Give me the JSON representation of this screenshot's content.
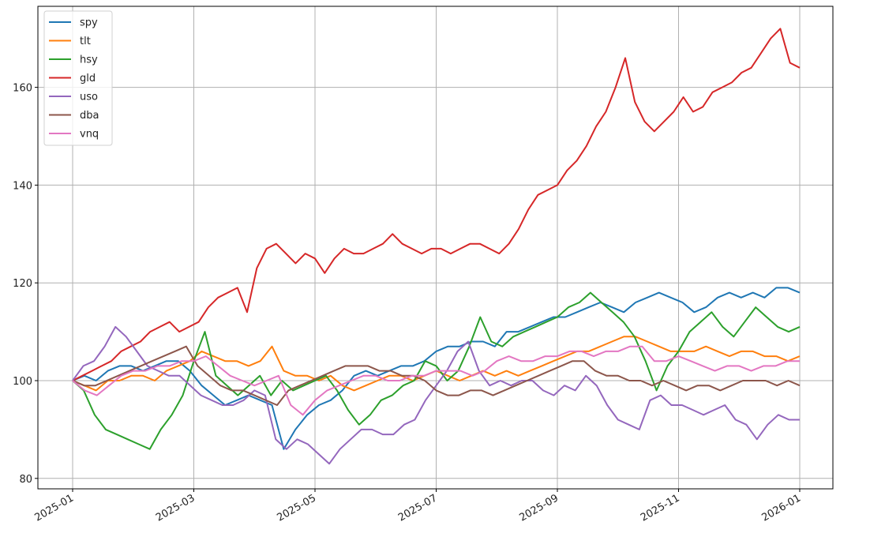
{
  "chart_data": {
    "type": "line",
    "title": "",
    "xlabel": "",
    "ylabel": "",
    "ylim": [
      78,
      176
    ],
    "xlim": [
      "2024-12-16",
      "2026-01-15"
    ],
    "grid": true,
    "legend_position": "upper left",
    "x_ticks": [
      "2025-01",
      "2025-03",
      "2025-05",
      "2025-07",
      "2025-09",
      "2025-11",
      "2026-01"
    ],
    "y_ticks": [
      80,
      100,
      120,
      140,
      160
    ],
    "x_step_days": 7,
    "x_start": "2025-01-01",
    "series": [
      {
        "name": "spy",
        "color": "#1f77b4",
        "values": [
          100,
          101,
          100,
          102,
          103,
          103,
          102,
          103,
          104,
          104,
          102,
          99,
          97,
          95,
          96,
          97,
          96,
          95,
          86,
          90,
          93,
          95,
          96,
          98,
          101,
          102,
          101,
          102,
          103,
          103,
          104,
          106,
          107,
          107,
          108,
          108,
          107,
          110,
          110,
          111,
          112,
          113,
          113,
          114,
          115,
          116,
          115,
          114,
          116,
          117,
          118,
          117,
          116,
          114,
          115,
          117,
          118,
          117,
          118,
          117,
          119,
          119,
          118
        ]
      },
      {
        "name": "tlt",
        "color": "#ff7f0e",
        "values": [
          100,
          99,
          98,
          100,
          100,
          101,
          101,
          100,
          102,
          103,
          104,
          106,
          105,
          104,
          104,
          103,
          104,
          107,
          102,
          101,
          101,
          100,
          101,
          99,
          98,
          99,
          100,
          101,
          101,
          100,
          101,
          102,
          101,
          100,
          101,
          102,
          101,
          102,
          101,
          102,
          103,
          104,
          105,
          106,
          106,
          107,
          108,
          109,
          109,
          108,
          107,
          106,
          106,
          106,
          107,
          106,
          105,
          106,
          106,
          105,
          105,
          104,
          105
        ]
      },
      {
        "name": "hsy",
        "color": "#2ca02c",
        "values": [
          100,
          98,
          93,
          90,
          89,
          88,
          87,
          86,
          90,
          93,
          97,
          104,
          110,
          101,
          99,
          97,
          99,
          101,
          97,
          100,
          98,
          99,
          100,
          101,
          98,
          94,
          91,
          93,
          96,
          97,
          99,
          100,
          104,
          103,
          100,
          102,
          107,
          113,
          108,
          107,
          109,
          110,
          111,
          112,
          113,
          115,
          116,
          118,
          116,
          114,
          112,
          109,
          104,
          98,
          103,
          106,
          110,
          112,
          114,
          111,
          109,
          112,
          115,
          113,
          111,
          110,
          111
        ]
      },
      {
        "name": "gld",
        "color": "#d62728",
        "values": [
          100,
          101,
          102,
          103,
          104,
          106,
          107,
          108,
          110,
          111,
          112,
          110,
          111,
          112,
          115,
          117,
          118,
          119,
          114,
          123,
          127,
          128,
          126,
          124,
          126,
          125,
          122,
          125,
          127,
          126,
          126,
          127,
          128,
          130,
          128,
          127,
          126,
          127,
          127,
          126,
          127,
          128,
          128,
          127,
          126,
          128,
          131,
          135,
          138,
          139,
          140,
          143,
          145,
          148,
          152,
          155,
          160,
          166,
          157,
          153,
          151,
          153,
          155,
          158,
          155,
          156,
          159,
          160,
          161,
          163,
          164,
          167,
          170,
          172,
          165,
          164
        ]
      },
      {
        "name": "uso",
        "color": "#9467bd",
        "values": [
          100,
          103,
          104,
          107,
          111,
          109,
          106,
          103,
          102,
          101,
          101,
          99,
          97,
          96,
          95,
          95,
          96,
          98,
          97,
          88,
          86,
          88,
          87,
          85,
          83,
          86,
          88,
          90,
          90,
          89,
          89,
          91,
          92,
          96,
          99,
          102,
          106,
          108,
          102,
          99,
          100,
          99,
          100,
          100,
          98,
          97,
          99,
          98,
          101,
          99,
          95,
          92,
          91,
          90,
          96,
          97,
          95,
          95,
          94,
          93,
          94,
          95,
          92,
          91,
          88,
          91,
          93,
          92,
          92
        ]
      },
      {
        "name": "dba",
        "color": "#8c564b",
        "values": [
          100,
          99,
          99,
          100,
          101,
          102,
          103,
          104,
          105,
          106,
          107,
          103,
          101,
          99,
          98,
          98,
          97,
          96,
          95,
          98,
          99,
          100,
          101,
          102,
          103,
          103,
          103,
          102,
          102,
          101,
          101,
          100,
          98,
          97,
          97,
          98,
          98,
          97,
          98,
          99,
          100,
          101,
          102,
          103,
          104,
          104,
          102,
          101,
          101,
          100,
          100,
          99,
          100,
          99,
          98,
          99,
          99,
          98,
          99,
          100,
          100,
          100,
          99,
          100,
          99
        ]
      },
      {
        "name": "vnq",
        "color": "#e377c2",
        "values": [
          100,
          98,
          97,
          99,
          101,
          102,
          102,
          103,
          103,
          104,
          104,
          105,
          103,
          101,
          100,
          99,
          100,
          101,
          95,
          93,
          96,
          98,
          99,
          100,
          101,
          101,
          100,
          100,
          101,
          101,
          102,
          102,
          102,
          101,
          102,
          104,
          105,
          104,
          104,
          105,
          105,
          106,
          106,
          105,
          106,
          106,
          107,
          107,
          104,
          104,
          105,
          104,
          103,
          102,
          103,
          103,
          102,
          103,
          103,
          104,
          104
        ]
      }
    ]
  }
}
